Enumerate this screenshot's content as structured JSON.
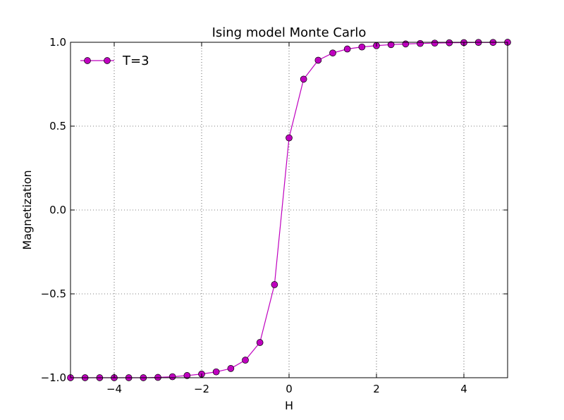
{
  "chart_data": {
    "type": "line",
    "title": "Ising model Monte Carlo",
    "xlabel": "H",
    "ylabel": "Magnetization",
    "xlim": [
      -5,
      5
    ],
    "ylim": [
      -1.0,
      1.0
    ],
    "xticks": [
      -4,
      -2,
      0,
      2,
      4
    ],
    "xtick_labels": [
      "−4",
      "−2",
      "0",
      "2",
      "4"
    ],
    "yticks": [
      -1.0,
      -0.5,
      0.0,
      0.5,
      1.0
    ],
    "ytick_labels": [
      "−1.0",
      "−0.5",
      "0.0",
      "0.5",
      "1.0"
    ],
    "grid": true,
    "legend_position": "top-left",
    "series": [
      {
        "name": "T=3",
        "color": "#bf00bf",
        "marker": "circle",
        "x": [
          -5.0,
          -4.667,
          -4.333,
          -4.0,
          -3.667,
          -3.333,
          -3.0,
          -2.667,
          -2.333,
          -2.0,
          -1.667,
          -1.333,
          -1.0,
          -0.667,
          -0.333,
          0.0,
          0.333,
          0.667,
          1.0,
          1.333,
          1.667,
          2.0,
          2.333,
          2.667,
          3.0,
          3.333,
          3.667,
          4.0,
          4.333,
          4.667,
          5.0
        ],
        "y": [
          -1.0,
          -1.0,
          -1.0,
          -1.0,
          -1.0,
          -1.0,
          -0.998,
          -0.994,
          -0.987,
          -0.978,
          -0.965,
          -0.945,
          -0.895,
          -0.79,
          -0.445,
          0.43,
          0.78,
          0.893,
          0.936,
          0.96,
          0.972,
          0.98,
          0.986,
          0.99,
          0.993,
          0.995,
          0.997,
          0.998,
          0.999,
          0.999,
          1.0
        ]
      }
    ]
  }
}
